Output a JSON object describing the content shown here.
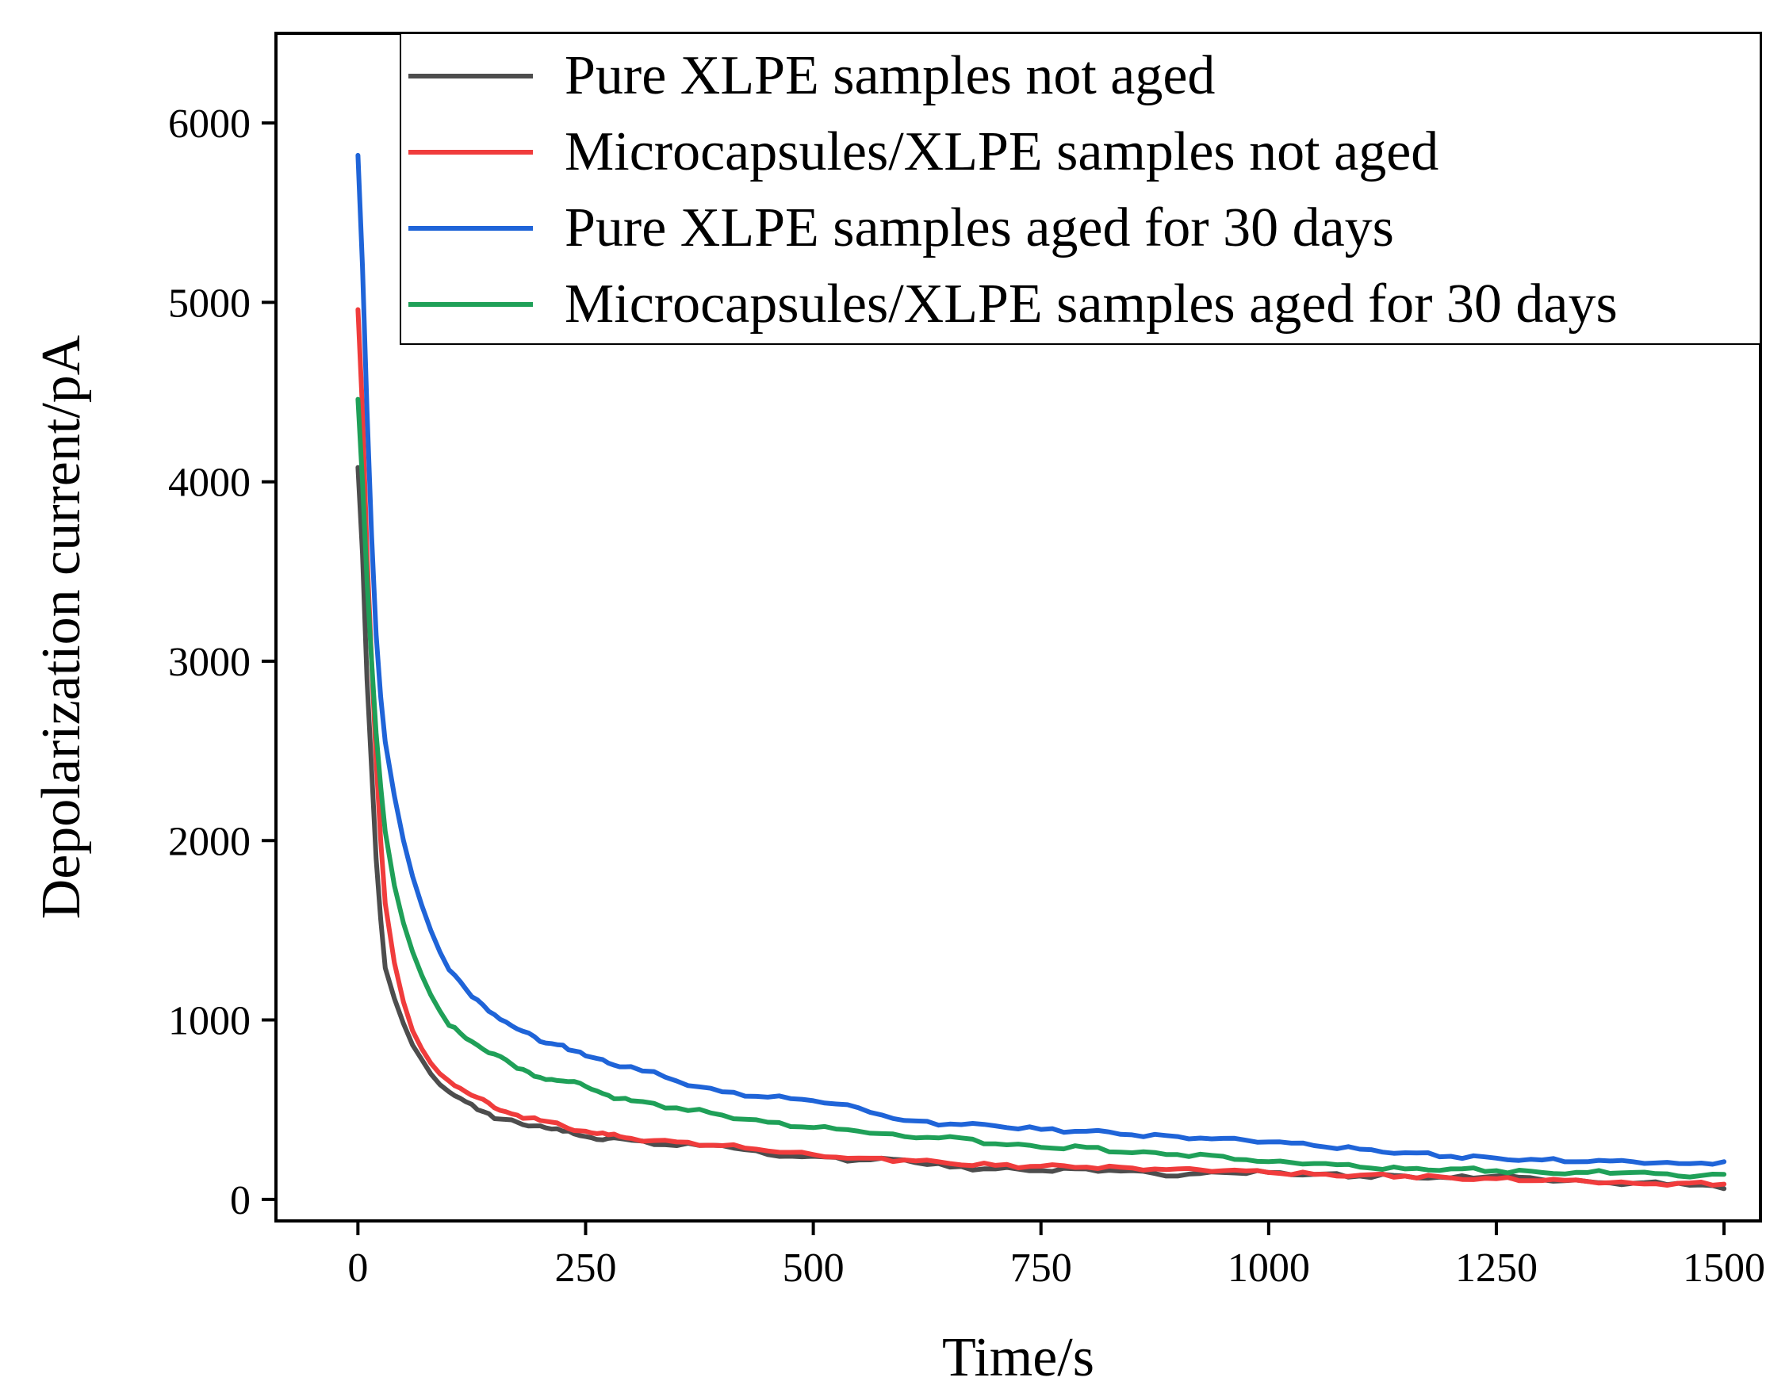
{
  "chart_data": {
    "type": "line",
    "title": "",
    "xlabel": "Time/s",
    "ylabel": "Depolarization current/pA",
    "xlim": [
      -90,
      1540
    ],
    "ylim": [
      -120,
      6500
    ],
    "xticks": [
      "0",
      "250",
      "500",
      "750",
      "1000",
      "1250",
      "1500"
    ],
    "yticks": [
      "0",
      "1000",
      "2000",
      "3000",
      "4000",
      "5000",
      "6000"
    ],
    "grid": false,
    "legend_position": "top-right",
    "series": [
      {
        "name": "Pure XLPE samples not aged",
        "color": "#4d4d4d",
        "x": [
          0,
          5,
          10,
          15,
          20,
          25,
          30,
          40,
          50,
          60,
          70,
          80,
          90,
          100,
          125,
          150,
          175,
          200,
          225,
          250,
          275,
          300,
          350,
          400,
          450,
          500,
          550,
          600,
          650,
          700,
          750,
          800,
          850,
          900,
          950,
          1000,
          1050,
          1100,
          1150,
          1200,
          1250,
          1300,
          1350,
          1400,
          1450,
          1500
        ],
        "values": [
          4080,
          3600,
          2900,
          2400,
          1900,
          1560,
          1290,
          1120,
          980,
          860,
          780,
          700,
          640,
          600,
          530,
          450,
          430,
          410,
          380,
          350,
          340,
          330,
          300,
          300,
          250,
          240,
          220,
          220,
          180,
          170,
          160,
          170,
          160,
          130,
          150,
          150,
          140,
          130,
          130,
          120,
          130,
          110,
          100,
          90,
          90,
          60
        ]
      },
      {
        "name": "Microcapsules/XLPE samples not aged",
        "color": "#f03c3c",
        "x": [
          0,
          5,
          10,
          15,
          20,
          25,
          30,
          40,
          50,
          60,
          70,
          80,
          90,
          100,
          125,
          150,
          175,
          200,
          225,
          250,
          275,
          300,
          350,
          400,
          450,
          500,
          550,
          600,
          650,
          700,
          750,
          800,
          850,
          900,
          950,
          1000,
          1050,
          1100,
          1150,
          1200,
          1250,
          1300,
          1350,
          1400,
          1450,
          1500
        ],
        "values": [
          4960,
          4400,
          3600,
          3000,
          2450,
          2000,
          1650,
          1320,
          1100,
          940,
          840,
          760,
          700,
          660,
          580,
          510,
          470,
          440,
          410,
          380,
          360,
          340,
          320,
          300,
          270,
          250,
          230,
          220,
          200,
          190,
          185,
          180,
          175,
          170,
          160,
          150,
          140,
          135,
          130,
          120,
          115,
          105,
          100,
          90,
          90,
          85
        ]
      },
      {
        "name": "Pure XLPE samples aged for 30 days",
        "color": "#1f64d8",
        "x": [
          0,
          5,
          10,
          15,
          20,
          25,
          30,
          40,
          50,
          60,
          70,
          80,
          90,
          100,
          125,
          150,
          175,
          200,
          225,
          250,
          275,
          300,
          350,
          400,
          450,
          500,
          550,
          600,
          650,
          700,
          750,
          800,
          850,
          900,
          950,
          1000,
          1050,
          1100,
          1150,
          1200,
          1250,
          1300,
          1350,
          1400,
          1450,
          1500
        ],
        "values": [
          5820,
          5200,
          4400,
          3700,
          3150,
          2800,
          2550,
          2250,
          2000,
          1800,
          1640,
          1500,
          1380,
          1280,
          1130,
          1030,
          950,
          880,
          860,
          800,
          760,
          740,
          660,
          600,
          570,
          550,
          510,
          440,
          420,
          410,
          390,
          380,
          360,
          350,
          340,
          320,
          300,
          280,
          260,
          240,
          230,
          220,
          210,
          210,
          200,
          210
        ]
      },
      {
        "name": "Microcapsules/XLPE samples aged for 30 days",
        "color": "#1fa058",
        "x": [
          0,
          5,
          10,
          15,
          20,
          25,
          30,
          40,
          50,
          60,
          70,
          80,
          90,
          100,
          125,
          150,
          175,
          200,
          225,
          250,
          275,
          300,
          350,
          400,
          450,
          500,
          550,
          600,
          650,
          700,
          750,
          800,
          850,
          900,
          950,
          1000,
          1050,
          1100,
          1150,
          1200,
          1250,
          1300,
          1350,
          1400,
          1450,
          1500
        ],
        "values": [
          4460,
          4000,
          3450,
          3000,
          2600,
          2300,
          2050,
          1750,
          1540,
          1380,
          1250,
          1140,
          1050,
          970,
          880,
          810,
          730,
          680,
          660,
          630,
          580,
          550,
          510,
          470,
          430,
          400,
          380,
          350,
          350,
          310,
          290,
          290,
          260,
          250,
          240,
          210,
          200,
          180,
          170,
          170,
          160,
          150,
          150,
          150,
          130,
          140
        ]
      }
    ]
  }
}
